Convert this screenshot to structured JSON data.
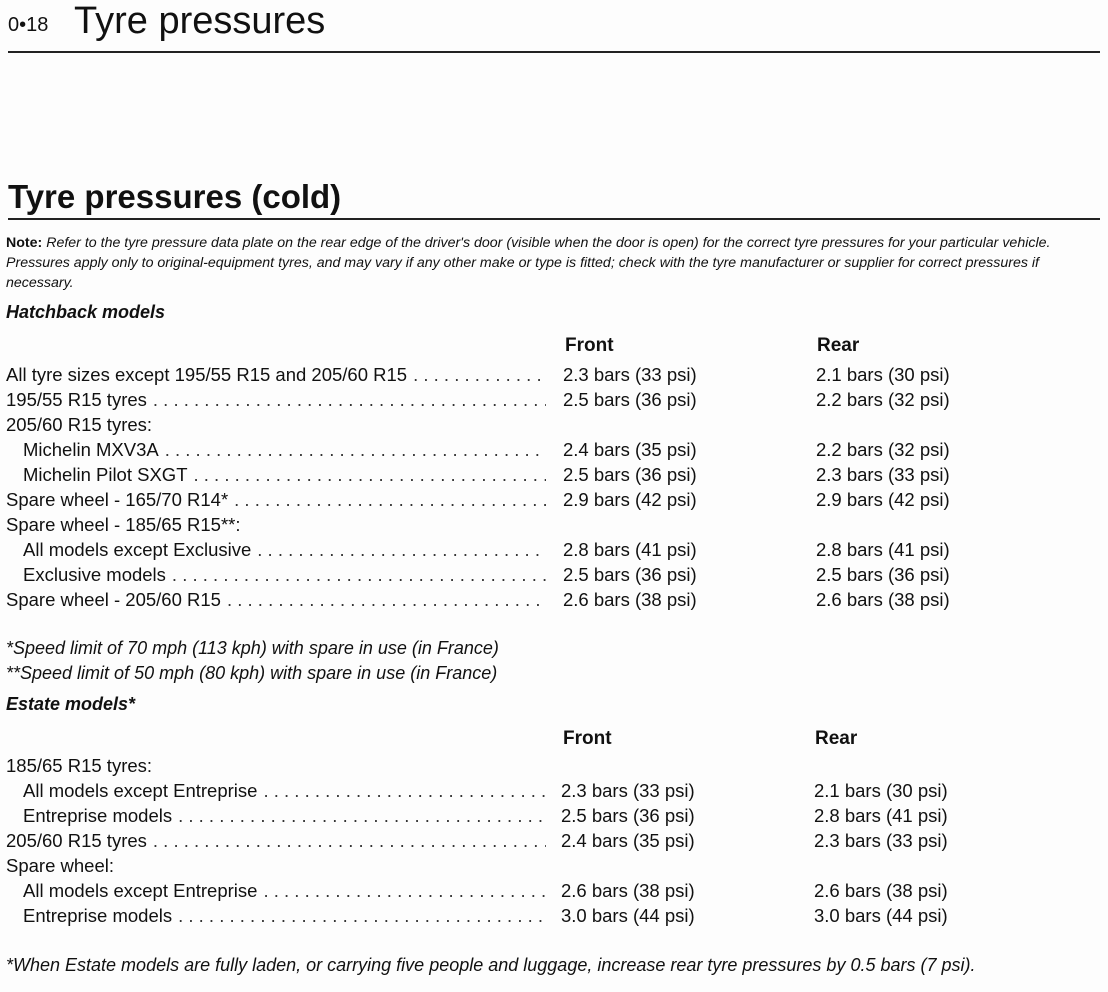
{
  "header": {
    "page_number": "0•18",
    "title": "Tyre pressures"
  },
  "section": {
    "title": "Tyre pressures (cold)"
  },
  "note": {
    "label": "Note:",
    "text": "Refer to the tyre pressure data plate on the rear edge of the driver's door (visible when the door is open) for the correct tyre pressures for your particular vehicle. Pressures apply only to original-equipment tyres, and may vary if any other make or type is fitted; check with the tyre manufacturer or supplier for correct pressures if necessary."
  },
  "hatchback": {
    "heading": "Hatchback models",
    "col_front": "Front",
    "col_rear": "Rear",
    "rows": [
      {
        "label": "All tyre sizes except 195/55 R15 and 205/60 R15",
        "front": "2.3 bars (33 psi)",
        "rear": "2.1 bars (30 psi)"
      },
      {
        "label": "195/55 R15 tyres",
        "front": "2.5 bars (36 psi)",
        "rear": "2.2 bars (32 psi)"
      },
      {
        "label": "205/60 R15 tyres:"
      },
      {
        "label": "Michelin MXV3A",
        "front": "2.4 bars (35 psi)",
        "rear": "2.2 bars (32 psi)"
      },
      {
        "label": "Michelin Pilot SXGT",
        "front": "2.5 bars (36 psi)",
        "rear": "2.3 bars (33 psi)"
      },
      {
        "label": "Spare wheel - 165/70 R14*",
        "front": "2.9 bars (42 psi)",
        "rear": "2.9 bars (42 psi)"
      },
      {
        "label": "Spare wheel - 185/65 R15**:"
      },
      {
        "label": "All models except Exclusive",
        "front": "2.8 bars (41 psi)",
        "rear": "2.8 bars (41 psi)"
      },
      {
        "label": "Exclusive models",
        "front": "2.5 bars (36 psi)",
        "rear": "2.5 bars (36 psi)"
      },
      {
        "label": "Spare wheel - 205/60 R15",
        "front": "2.6 bars (38 psi)",
        "rear": "2.6 bars (38 psi)"
      }
    ],
    "footnotes": [
      "*Speed limit of 70 mph (113 kph) with spare in use (in France)",
      "**Speed limit of 50 mph (80 kph) with spare in use (in France)"
    ]
  },
  "estate": {
    "heading": "Estate models*",
    "col_front": "Front",
    "col_rear": "Rear",
    "rows": [
      {
        "label": "185/65 R15 tyres:"
      },
      {
        "label": "All models except Entreprise",
        "front": "2.3 bars (33 psi)",
        "rear": "2.1 bars (30 psi)"
      },
      {
        "label": "Entreprise models",
        "front": "2.5 bars (36 psi)",
        "rear": "2.8 bars (41 psi)"
      },
      {
        "label": "205/60 R15 tyres",
        "front": "2.4 bars (35 psi)",
        "rear": "2.3 bars (33 psi)"
      },
      {
        "label": "Spare wheel:"
      },
      {
        "label": "All models except Entreprise",
        "front": "2.6 bars (38 psi)",
        "rear": "2.6 bars (38 psi)"
      },
      {
        "label": "Entreprise models",
        "front": "3.0 bars (44 psi)",
        "rear": "3.0 bars (44 psi)"
      }
    ],
    "footnote": "*When Estate models are fully laden, or carrying five people and luggage, increase rear tyre pressures by 0.5 bars (7 psi)."
  }
}
